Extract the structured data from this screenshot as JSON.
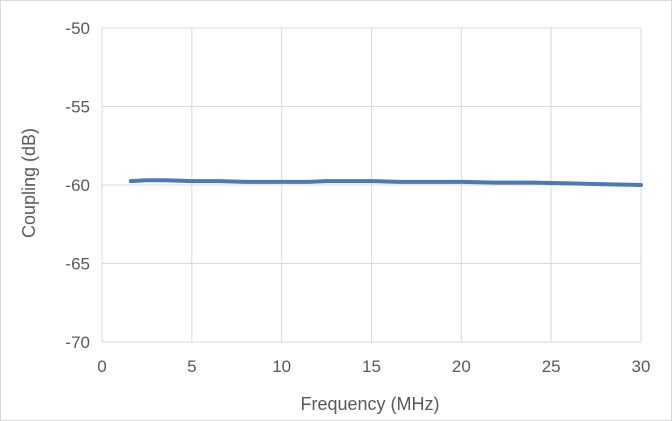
{
  "chart_data": {
    "type": "line",
    "title": "",
    "xlabel": "Frequency (MHz)",
    "ylabel": "Coupling (dB)",
    "xlim": [
      0,
      30
    ],
    "ylim": [
      -70,
      -50
    ],
    "x_ticks": [
      0,
      5,
      10,
      15,
      20,
      25,
      30
    ],
    "y_ticks": [
      -50,
      -55,
      -60,
      -65,
      -70
    ],
    "x_tick_labels": [
      "0",
      "5",
      "10",
      "15",
      "20",
      "25",
      "30"
    ],
    "y_tick_labels": [
      "-50",
      "-55",
      "-60",
      "-65",
      "-70"
    ],
    "grid": true,
    "legend": "none",
    "series": [
      {
        "color": "#4a7ab5",
        "x": [
          1.6,
          2.5,
          3.5,
          5,
          6.5,
          8,
          10,
          11.5,
          12.5,
          14,
          15,
          16.5,
          18,
          20,
          22,
          24,
          26,
          28,
          30
        ],
        "y": [
          -59.75,
          -59.7,
          -59.7,
          -59.75,
          -59.75,
          -59.8,
          -59.8,
          -59.8,
          -59.75,
          -59.75,
          -59.75,
          -59.8,
          -59.8,
          -59.8,
          -59.85,
          -59.85,
          -59.9,
          -59.95,
          -60.0
        ]
      }
    ]
  }
}
